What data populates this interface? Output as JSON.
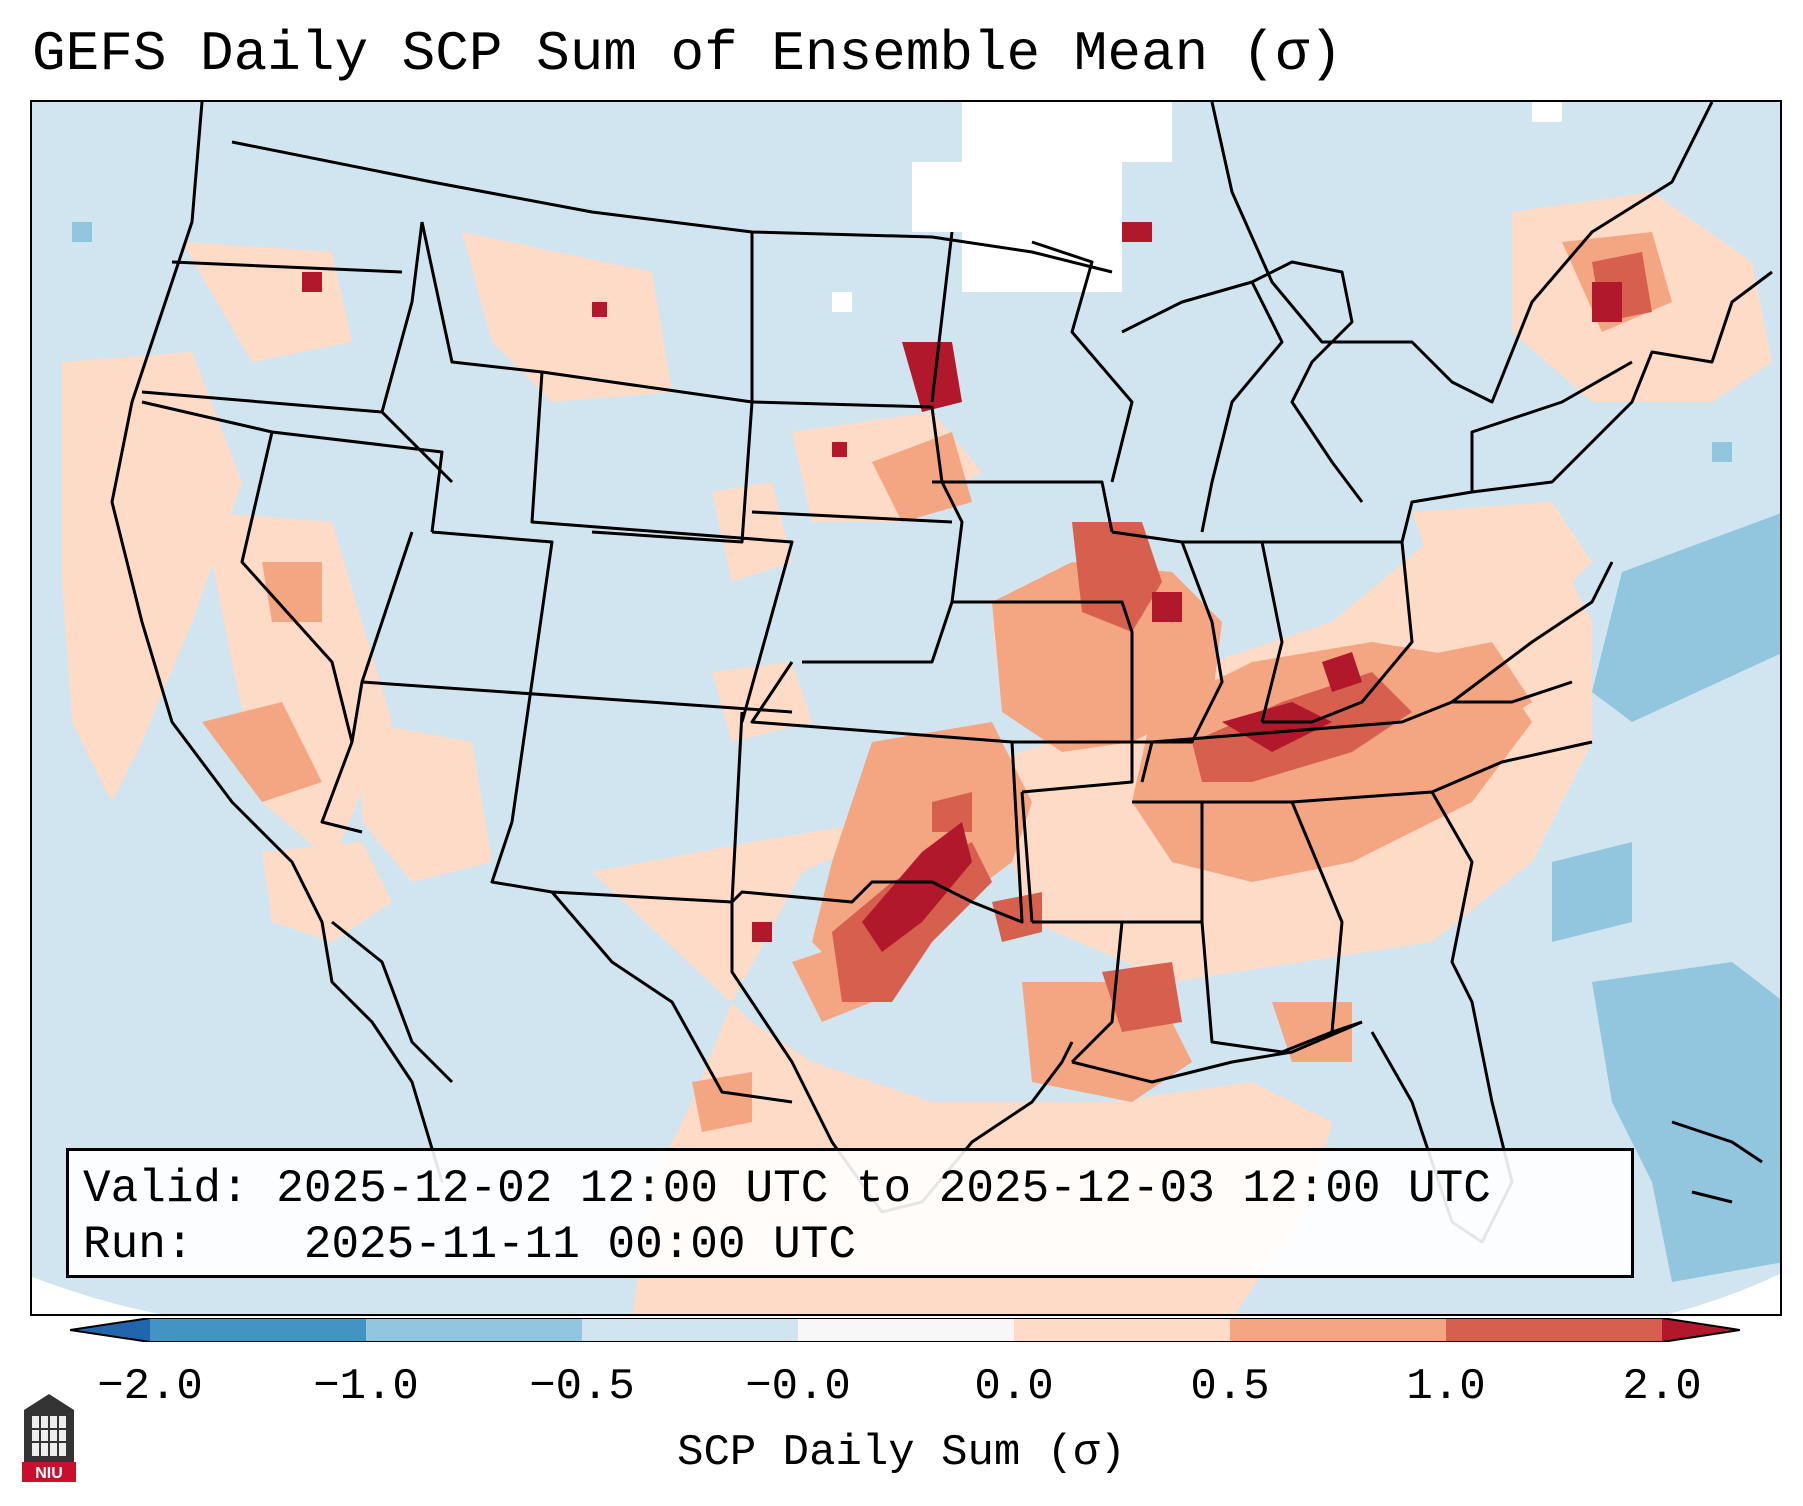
{
  "title": "GEFS Daily SCP Sum of Ensemble Mean (σ)",
  "info": {
    "valid_label": "Valid:",
    "valid_value": "2025-12-02 12:00 UTC to 2025-12-03 12:00 UTC",
    "run_label": "Run:",
    "run_value": "2025-11-11 00:00 UTC"
  },
  "colorbar": {
    "label": "SCP Daily Sum (σ)",
    "ticks": [
      "−2.0",
      "−1.0",
      "−0.5",
      "−0.0",
      "0.0",
      "0.5",
      "1.0",
      "2.0"
    ],
    "bins": [
      {
        "range": "-2.0 to -1.0",
        "color": "#4393c3"
      },
      {
        "range": "-1.0 to -0.5",
        "color": "#92c5de"
      },
      {
        "range": "-0.5 to 0.0",
        "color": "#d1e5f0"
      },
      {
        "range": "0.0",
        "color": "#f7f7f7"
      },
      {
        "range": "0.0 to 0.5",
        "color": "#fddbc7"
      },
      {
        "range": "0.5 to 1.0",
        "color": "#f4a582"
      },
      {
        "range": "1.0 to 2.0",
        "color": "#d6604d"
      }
    ],
    "under_color": "#2166ac",
    "over_color": "#b2182b"
  },
  "map": {
    "background_color": "#d1e5f0",
    "boundary_color": "#000000",
    "regions": [
      {
        "name": "southern-plains-max",
        "level": "over"
      },
      {
        "name": "tennessee-valley-max",
        "level": "high"
      },
      {
        "name": "midwest-illinois",
        "level": "high"
      },
      {
        "name": "gulf-coast",
        "level": "moderate"
      },
      {
        "name": "southeast",
        "level": "low"
      },
      {
        "name": "atlantic-offshore",
        "level": "negative"
      }
    ]
  },
  "logo": {
    "text": "NIU",
    "color": "#c8102e"
  }
}
